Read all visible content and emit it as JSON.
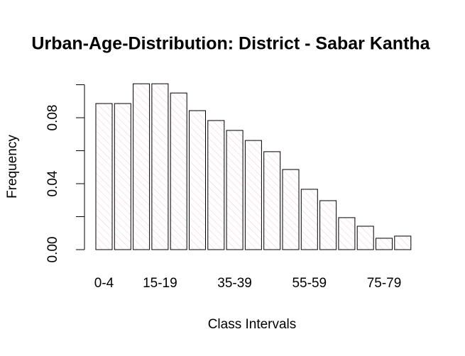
{
  "chart_data": {
    "type": "bar",
    "title": "Urban-Age-Distribution: District - Sabar Kantha",
    "x_label": "Class Intervals",
    "y_label": "Frequency",
    "categories": [
      "0-4",
      null,
      null,
      "15-19",
      null,
      null,
      null,
      "35-39",
      null,
      null,
      null,
      "55-59",
      null,
      null,
      null,
      "75-79",
      null
    ],
    "values": [
      0.0886,
      0.0886,
      0.1006,
      0.1006,
      0.095,
      0.0843,
      0.0783,
      0.0723,
      0.0662,
      0.0594,
      0.0486,
      0.0366,
      0.0297,
      0.0194,
      0.0142,
      0.0069,
      0.0082
    ],
    "color": "#f7c6cf",
    "ylim": [
      0,
      0.1
    ],
    "yticks": [
      {
        "value": 0,
        "label": "0.00"
      },
      {
        "value": 0.02,
        "label": null
      },
      {
        "value": 0.04,
        "label": "0.04"
      },
      {
        "value": 0.06,
        "label": null
      },
      {
        "value": 0.08,
        "label": "0.08"
      },
      {
        "value": 0.1,
        "label": null
      }
    ]
  }
}
